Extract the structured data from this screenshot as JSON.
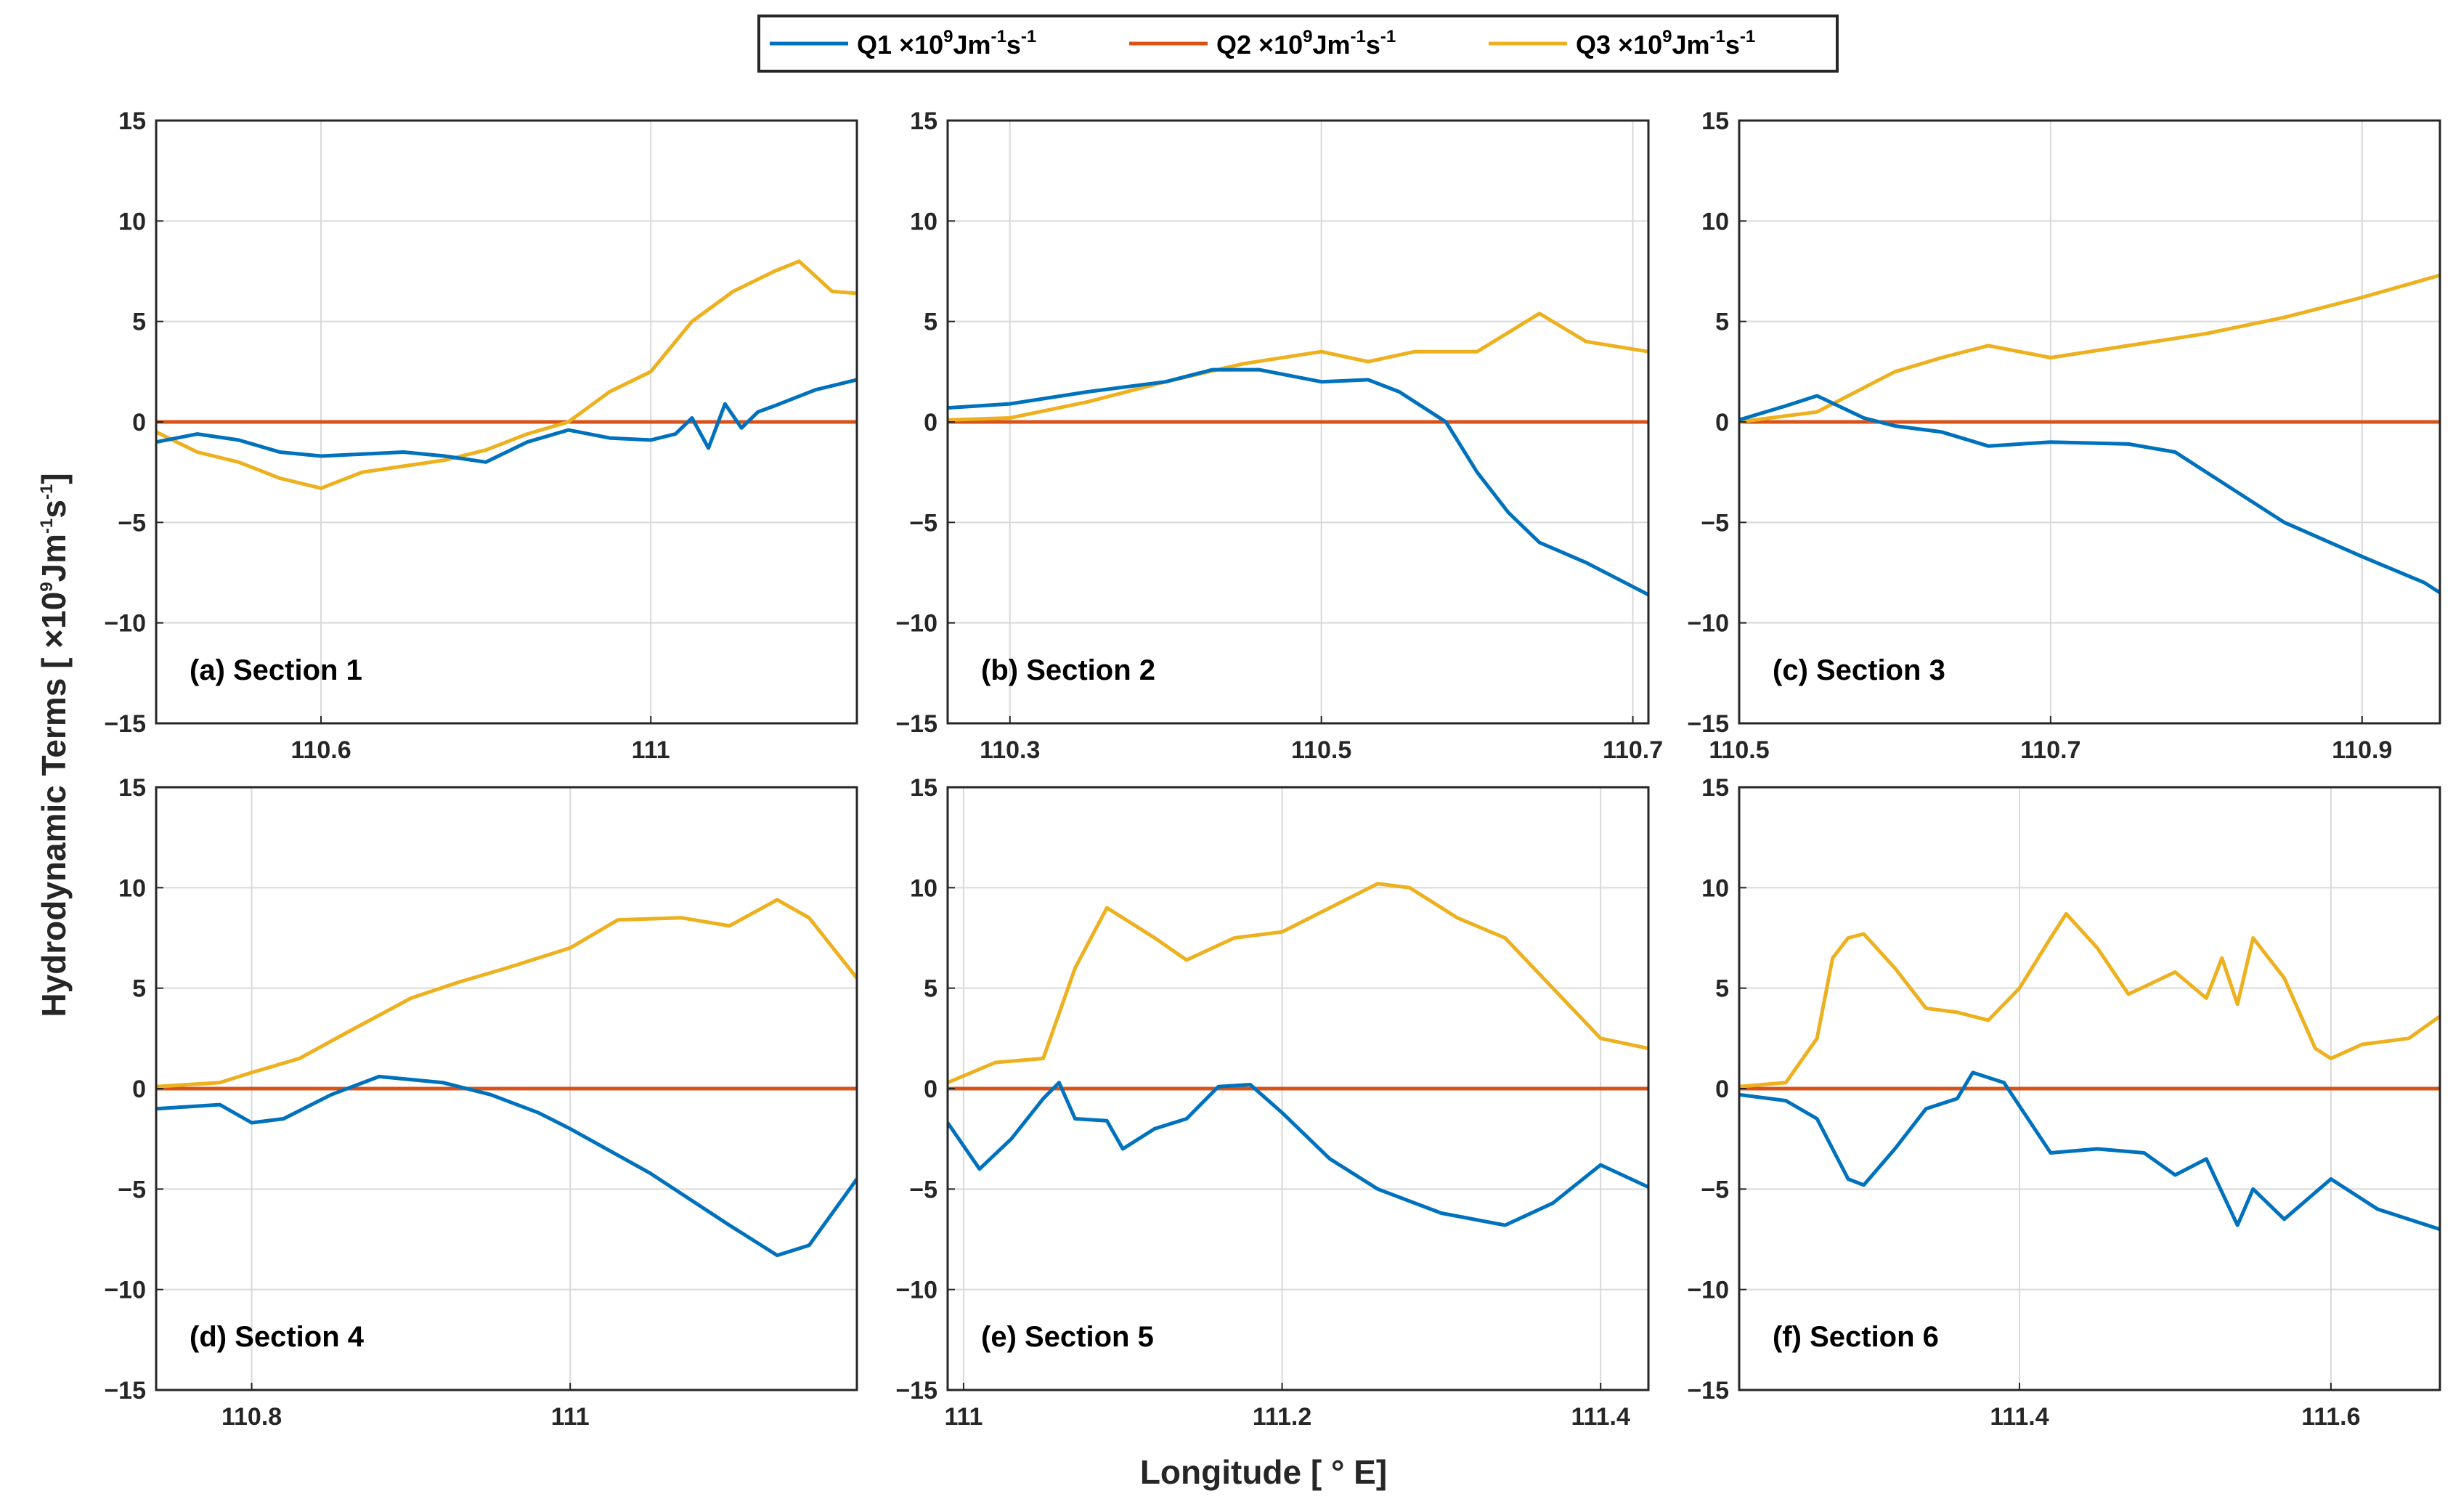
{
  "colors": {
    "Q1": "#0072BD",
    "Q2": "#D95319",
    "Q3": "#EDB120"
  },
  "legend": {
    "items": [
      {
        "key": "Q1",
        "name": "Q1",
        "unit": "×10",
        "exp": "9",
        "rest1": "Jm",
        "exp2": "-1",
        "rest2": "s",
        "exp3": "-1"
      },
      {
        "key": "Q2",
        "name": "Q2",
        "unit": "×10",
        "exp": "9",
        "rest1": "Jm",
        "exp2": "-1",
        "rest2": "s",
        "exp3": "-1"
      },
      {
        "key": "Q3",
        "name": "Q3",
        "unit": "×10",
        "exp": "9",
        "rest1": "Jm",
        "exp2": "-1",
        "rest2": "s",
        "exp3": "-1"
      }
    ]
  },
  "xlabel": "Longitude [ ° E]",
  "ylabel": {
    "pre": "Hydrodynamic Terms [ ×10",
    "exp": "9",
    "mid": "Jm",
    "exp2": "-1",
    "mid2": "s",
    "exp3": "-1",
    "post": "]"
  },
  "chart_data": [
    {
      "type": "line",
      "title": "(a) Section 1",
      "xlim": [
        110.4,
        111.25
      ],
      "ylim": [
        -15,
        15
      ],
      "xticks": [
        110.6,
        111
      ],
      "xtick_labels": [
        "110.6",
        "111"
      ],
      "yticks": [
        -15,
        -10,
        -5,
        0,
        5,
        10,
        15
      ],
      "ytick_labels": [
        "−15",
        "−10",
        "−5",
        "0",
        "5",
        "10",
        "15"
      ],
      "series": [
        {
          "name": "Q1",
          "x": [
            110.4,
            110.45,
            110.5,
            110.55,
            110.6,
            110.65,
            110.7,
            110.75,
            110.8,
            110.85,
            110.9,
            110.95,
            111.0,
            111.03,
            111.05,
            111.07,
            111.09,
            111.11,
            111.13,
            111.15,
            111.2,
            111.25
          ],
          "y": [
            -1.0,
            -0.6,
            -0.9,
            -1.5,
            -1.7,
            -1.6,
            -1.5,
            -1.7,
            -2.0,
            -1.0,
            -0.4,
            -0.8,
            -0.9,
            -0.6,
            0.2,
            -1.3,
            0.9,
            -0.3,
            0.5,
            0.8,
            1.6,
            2.1
          ]
        },
        {
          "name": "Q2",
          "x": [
            110.4,
            111.25
          ],
          "y": [
            0.0,
            0.0
          ]
        },
        {
          "name": "Q3",
          "x": [
            110.4,
            110.45,
            110.5,
            110.55,
            110.6,
            110.65,
            110.7,
            110.75,
            110.8,
            110.85,
            110.9,
            110.95,
            111.0,
            111.05,
            111.1,
            111.15,
            111.18,
            111.22,
            111.25
          ],
          "y": [
            -0.5,
            -1.5,
            -2.0,
            -2.8,
            -3.3,
            -2.5,
            -2.2,
            -1.9,
            -1.4,
            -0.6,
            0.0,
            1.5,
            2.5,
            5.0,
            6.5,
            7.5,
            8.0,
            6.5,
            6.4
          ]
        }
      ]
    },
    {
      "type": "line",
      "title": "(b) Section 2",
      "xlim": [
        110.26,
        110.71
      ],
      "ylim": [
        -15,
        15
      ],
      "xticks": [
        110.3,
        110.5,
        110.7
      ],
      "xtick_labels": [
        "110.3",
        "110.5",
        "110.7"
      ],
      "yticks": [
        -15,
        -10,
        -5,
        0,
        5,
        10,
        15
      ],
      "ytick_labels": [
        "−15",
        "−10",
        "−5",
        "0",
        "5",
        "10",
        "15"
      ],
      "series": [
        {
          "name": "Q1",
          "x": [
            110.26,
            110.3,
            110.35,
            110.4,
            110.43,
            110.46,
            110.5,
            110.53,
            110.55,
            110.58,
            110.6,
            110.62,
            110.64,
            110.67,
            110.71
          ],
          "y": [
            0.7,
            0.9,
            1.5,
            2.0,
            2.6,
            2.6,
            2.0,
            2.1,
            1.5,
            0.0,
            -2.5,
            -4.5,
            -6.0,
            -7.0,
            -8.6
          ]
        },
        {
          "name": "Q2",
          "x": [
            110.26,
            110.71
          ],
          "y": [
            0.0,
            0.0
          ]
        },
        {
          "name": "Q3",
          "x": [
            110.26,
            110.3,
            110.35,
            110.4,
            110.45,
            110.5,
            110.53,
            110.56,
            110.6,
            110.64,
            110.67,
            110.71
          ],
          "y": [
            0.1,
            0.2,
            1.0,
            2.0,
            2.9,
            3.5,
            3.0,
            3.5,
            3.5,
            5.4,
            4.0,
            3.5
          ]
        }
      ]
    },
    {
      "type": "line",
      "title": "(c) Section 3",
      "xlim": [
        110.5,
        110.95
      ],
      "ylim": [
        -15,
        15
      ],
      "xticks": [
        110.5,
        110.7,
        110.9
      ],
      "xtick_labels": [
        "110.5",
        "110.7",
        "110.9"
      ],
      "yticks": [
        -15,
        -10,
        -5,
        0,
        5,
        10,
        15
      ],
      "ytick_labels": [
        "−15",
        "−10",
        "−5",
        "0",
        "5",
        "10",
        "15"
      ],
      "series": [
        {
          "name": "Q1",
          "x": [
            110.5,
            110.53,
            110.55,
            110.58,
            110.6,
            110.63,
            110.66,
            110.7,
            110.75,
            110.78,
            110.8,
            110.85,
            110.9,
            110.94,
            110.95
          ],
          "y": [
            0.1,
            0.8,
            1.3,
            0.2,
            -0.2,
            -0.5,
            -1.2,
            -1.0,
            -1.1,
            -1.5,
            -2.5,
            -5.0,
            -6.7,
            -8.0,
            -8.5
          ]
        },
        {
          "name": "Q2",
          "x": [
            110.5,
            110.95
          ],
          "y": [
            0.0,
            0.0
          ]
        },
        {
          "name": "Q3",
          "x": [
            110.5,
            110.55,
            110.6,
            110.63,
            110.66,
            110.7,
            110.75,
            110.8,
            110.85,
            110.9,
            110.95
          ],
          "y": [
            0.0,
            0.5,
            2.5,
            3.2,
            3.8,
            3.2,
            3.8,
            4.4,
            5.2,
            6.2,
            7.3
          ]
        }
      ]
    },
    {
      "type": "line",
      "title": "(d) Section 4",
      "xlim": [
        110.74,
        111.18
      ],
      "ylim": [
        -15,
        15
      ],
      "xticks": [
        110.8,
        111
      ],
      "xtick_labels": [
        "110.8",
        "111"
      ],
      "yticks": [
        -15,
        -10,
        -5,
        0,
        5,
        10,
        15
      ],
      "ytick_labels": [
        "−15",
        "−10",
        "−5",
        "0",
        "5",
        "10",
        "15"
      ],
      "series": [
        {
          "name": "Q1",
          "x": [
            110.74,
            110.78,
            110.8,
            110.82,
            110.85,
            110.88,
            110.92,
            110.95,
            110.98,
            111.0,
            111.05,
            111.1,
            111.13,
            111.15,
            111.18
          ],
          "y": [
            -1.0,
            -0.8,
            -1.7,
            -1.5,
            -0.3,
            0.6,
            0.3,
            -0.3,
            -1.2,
            -2.0,
            -4.2,
            -6.8,
            -8.3,
            -7.8,
            -4.5
          ]
        },
        {
          "name": "Q2",
          "x": [
            110.74,
            111.18
          ],
          "y": [
            0.0,
            0.0
          ]
        },
        {
          "name": "Q3",
          "x": [
            110.74,
            110.78,
            110.8,
            110.83,
            110.86,
            110.9,
            110.93,
            110.96,
            111.0,
            111.03,
            111.07,
            111.1,
            111.13,
            111.15,
            111.18
          ],
          "y": [
            0.1,
            0.3,
            0.8,
            1.5,
            2.8,
            4.5,
            5.3,
            6.0,
            7.0,
            8.4,
            8.5,
            8.1,
            9.4,
            8.5,
            5.5
          ]
        }
      ]
    },
    {
      "type": "line",
      "title": "(e) Section 5",
      "xlim": [
        110.99,
        111.43
      ],
      "ylim": [
        -15,
        15
      ],
      "xticks": [
        111,
        111.2,
        111.4
      ],
      "xtick_labels": [
        "111",
        "111.2",
        "111.4"
      ],
      "yticks": [
        -15,
        -10,
        -5,
        0,
        5,
        10,
        15
      ],
      "ytick_labels": [
        "−15",
        "−10",
        "−5",
        "0",
        "5",
        "10",
        "15"
      ],
      "series": [
        {
          "name": "Q1",
          "x": [
            110.99,
            111.01,
            111.03,
            111.05,
            111.06,
            111.07,
            111.09,
            111.1,
            111.12,
            111.14,
            111.16,
            111.18,
            111.2,
            111.23,
            111.26,
            111.3,
            111.34,
            111.37,
            111.4,
            111.43
          ],
          "y": [
            -1.7,
            -4.0,
            -2.5,
            -0.5,
            0.3,
            -1.5,
            -1.6,
            -3.0,
            -2.0,
            -1.5,
            0.1,
            0.2,
            -1.2,
            -3.5,
            -5.0,
            -6.2,
            -6.8,
            -5.7,
            -3.8,
            -4.9
          ]
        },
        {
          "name": "Q2",
          "x": [
            110.99,
            111.43
          ],
          "y": [
            0.0,
            0.0
          ]
        },
        {
          "name": "Q3",
          "x": [
            110.99,
            111.02,
            111.05,
            111.07,
            111.09,
            111.1,
            111.12,
            111.14,
            111.17,
            111.2,
            111.23,
            111.26,
            111.28,
            111.31,
            111.34,
            111.37,
            111.4,
            111.43
          ],
          "y": [
            0.3,
            1.3,
            1.5,
            6.0,
            9.0,
            8.5,
            7.5,
            6.4,
            7.5,
            7.8,
            9.0,
            10.2,
            10.0,
            8.5,
            7.5,
            5.0,
            2.5,
            2.0
          ]
        }
      ]
    },
    {
      "type": "line",
      "title": "(f) Section 6",
      "xlim": [
        111.22,
        111.67
      ],
      "ylim": [
        -15,
        15
      ],
      "xticks": [
        111.4,
        111.6
      ],
      "xtick_labels": [
        "111.4",
        "111.6"
      ],
      "yticks": [
        -15,
        -10,
        -5,
        0,
        5,
        10,
        15
      ],
      "ytick_labels": [
        "−15",
        "−10",
        "−5",
        "0",
        "5",
        "10",
        "15"
      ],
      "series": [
        {
          "name": "Q1",
          "x": [
            111.22,
            111.25,
            111.27,
            111.29,
            111.3,
            111.32,
            111.34,
            111.36,
            111.37,
            111.39,
            111.42,
            111.45,
            111.48,
            111.5,
            111.52,
            111.54,
            111.55,
            111.57,
            111.6,
            111.63,
            111.67
          ],
          "y": [
            -0.3,
            -0.6,
            -1.5,
            -4.5,
            -4.8,
            -3.0,
            -1.0,
            -0.5,
            0.8,
            0.3,
            -3.2,
            -3.0,
            -3.2,
            -4.3,
            -3.5,
            -6.8,
            -5.0,
            -6.5,
            -4.5,
            -6.0,
            -7.0
          ]
        },
        {
          "name": "Q2",
          "x": [
            111.22,
            111.67
          ],
          "y": [
            0.0,
            0.0
          ]
        },
        {
          "name": "Q3",
          "x": [
            111.22,
            111.25,
            111.27,
            111.28,
            111.29,
            111.3,
            111.32,
            111.34,
            111.36,
            111.38,
            111.4,
            111.42,
            111.43,
            111.45,
            111.47,
            111.5,
            111.52,
            111.53,
            111.54,
            111.55,
            111.57,
            111.59,
            111.6,
            111.62,
            111.65,
            111.67
          ],
          "y": [
            0.1,
            0.3,
            2.5,
            6.5,
            7.5,
            7.7,
            6.0,
            4.0,
            3.8,
            3.4,
            5.0,
            7.5,
            8.7,
            7.0,
            4.7,
            5.8,
            4.5,
            6.5,
            4.2,
            7.5,
            5.5,
            2.0,
            1.5,
            2.2,
            2.5,
            3.6
          ]
        }
      ]
    }
  ]
}
